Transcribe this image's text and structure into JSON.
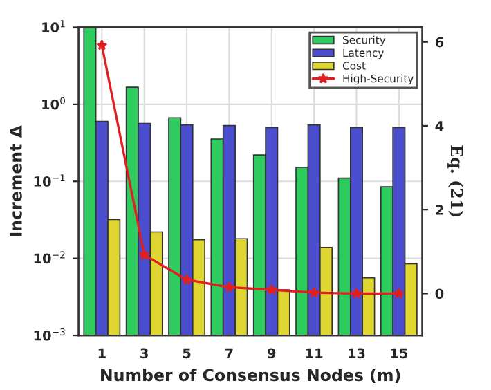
{
  "chart_data": {
    "type": "bar",
    "xlabel": "Number of Consensus Nodes (m)",
    "ylabel": "Increment Δ",
    "y2label": "Eq. (21)",
    "categories": [
      "1",
      "3",
      "5",
      "7",
      "9",
      "11",
      "13",
      "15"
    ],
    "series": [
      {
        "name": "Security",
        "color": "#2ecc5f",
        "values": [
          10,
          1.67,
          0.67,
          0.355,
          0.22,
          0.152,
          0.11,
          0.085
        ]
      },
      {
        "name": "Latency",
        "color": "#4b4fcf",
        "values": [
          0.6,
          0.565,
          0.54,
          0.53,
          0.5,
          0.54,
          0.5,
          0.5
        ]
      },
      {
        "name": "Cost",
        "color": "#e0d632",
        "values": [
          0.032,
          0.022,
          0.0175,
          0.018,
          0.0039,
          0.0139,
          0.0056,
          0.0085
        ]
      },
      {
        "name": "High-Security",
        "type": "line",
        "axis": "y2",
        "color": "#e02020",
        "marker": "star",
        "values": [
          5.92,
          0.92,
          0.33,
          0.15,
          0.09,
          0.02,
          0.0,
          0.0
        ]
      }
    ],
    "log": "y",
    "ylim": [
      0.001,
      10
    ],
    "yticks": [
      {
        "value": 0.001,
        "label": "10$^{−3}$"
      },
      {
        "value": 0.01,
        "label": "10$^{−2}$"
      },
      {
        "value": 0.1,
        "label": "10$^{−1}$"
      },
      {
        "value": 1,
        "label": "10$^{0}$"
      },
      {
        "value": 10,
        "label": "10$^{1}$"
      }
    ],
    "y2lim": [
      -1,
      6.35
    ],
    "y2ticks": [
      0,
      2,
      4,
      6
    ],
    "grid": true,
    "legend": "top right"
  }
}
